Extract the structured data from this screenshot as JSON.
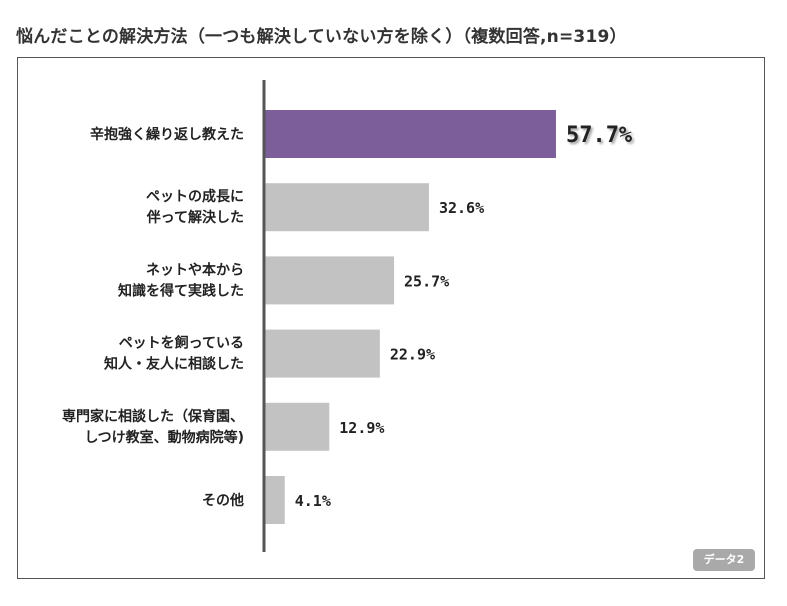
{
  "title": "悩んだことの解決方法（一つも解決していない方を除く）（複数回答,n=319）",
  "badge": "データ2",
  "colors": {
    "highlight": "#7b5e9a",
    "bar": "#c2c2c2",
    "axis": "#555555",
    "text": "#222222"
  },
  "chart_data": {
    "type": "bar",
    "orientation": "horizontal",
    "title": "悩んだことの解決方法（一つも解決していない方を除く）（複数回答,n=319）",
    "categories": [
      [
        "辛抱強く繰り返し教えた"
      ],
      [
        "ペットの成長に",
        "伴って解決した"
      ],
      [
        "ネットや本から",
        "知識を得て実践した"
      ],
      [
        "ペットを飼っている",
        "知人・友人に相談した"
      ],
      [
        "専門家に相談した（保育園、",
        "しつけ教室、動物病院等)"
      ],
      [
        "その他"
      ]
    ],
    "values": [
      57.7,
      32.6,
      25.7,
      22.9,
      12.9,
      4.1
    ],
    "value_labels": [
      "57.7%",
      "32.6%",
      "25.7%",
      "22.9%",
      "12.9%",
      "4.1%"
    ],
    "unit": "%",
    "xlim": [
      0,
      100
    ],
    "highlight_index": 0,
    "grid": false,
    "legend": "none"
  }
}
